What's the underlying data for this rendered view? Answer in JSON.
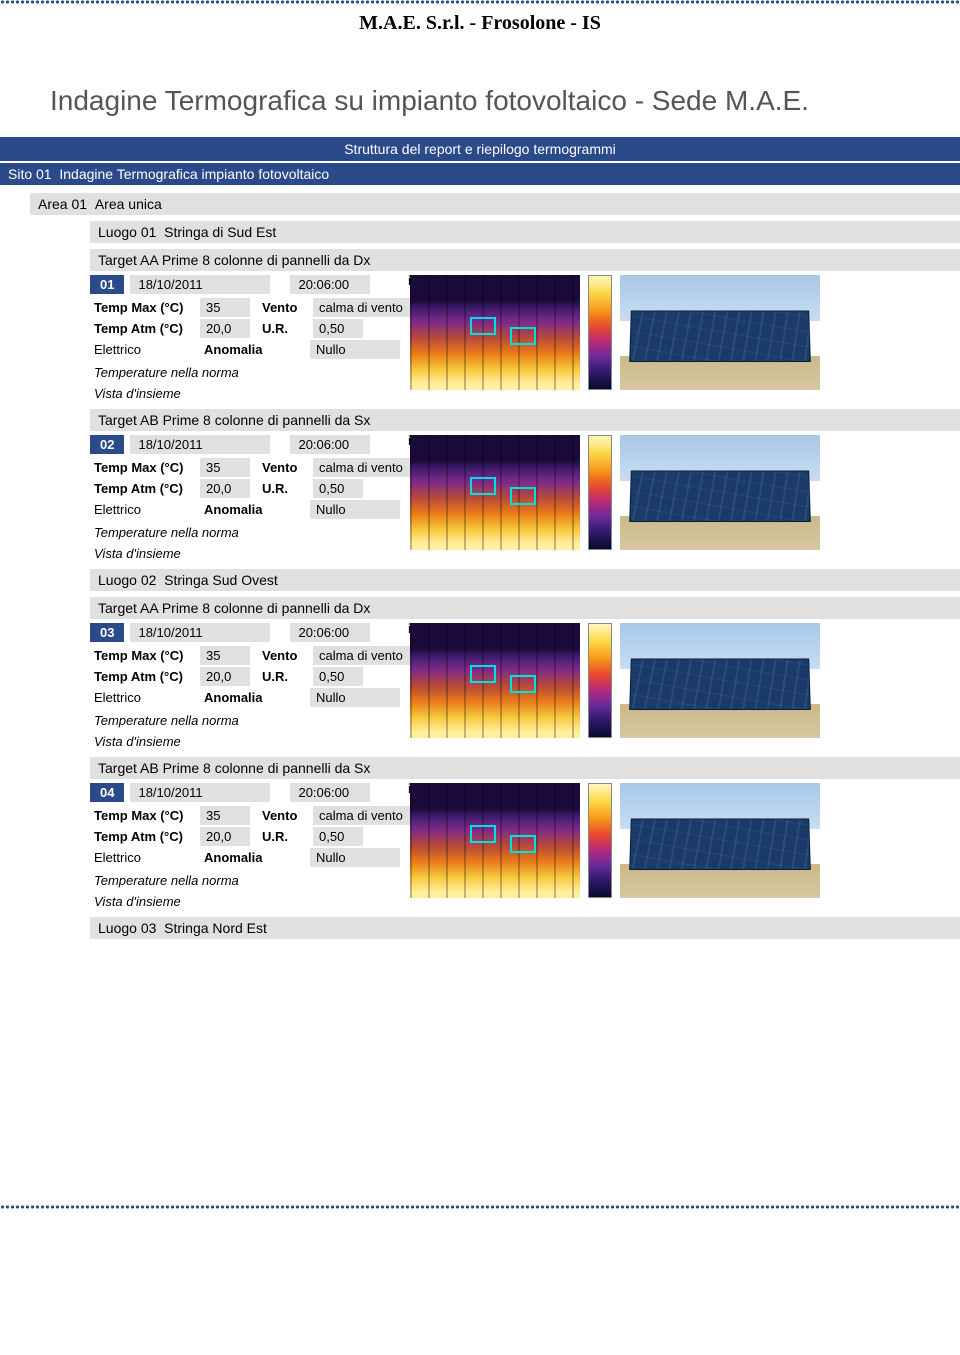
{
  "header": {
    "company": "M.A.E. S.r.l. - Frosolone - IS"
  },
  "title": "Indagine Termografica su impianto fotovoltaico - Sede M.A.E.",
  "section_header": "Struttura del report e riepilogo termogrammi",
  "sito": {
    "label": "Sito 01",
    "name": "Indagine Termografica impianto fotovoltaico"
  },
  "area": {
    "label": "Area 01",
    "name": "Area unica"
  },
  "luoghi": [
    {
      "label": "Luogo  01",
      "name": "Stringa di Sud Est",
      "targets": [
        {
          "title": "Target AA Prime 8 colonne di pannelli da Dx",
          "idx": "01",
          "date": "18/10/2011",
          "time": "20:06:00",
          "file": "ir_5340.jpg",
          "temp_max_label": "Temp Max (°C)",
          "temp_max": "35",
          "vento_label": "Vento",
          "vento": "calma di vento",
          "temp_atm_label": "Temp Atm (°C)",
          "temp_atm": "20,0",
          "ur_label": "U.R.",
          "ur": "0,50",
          "elettrico_label": "Elettrico",
          "anomalia_label": "Anomalia",
          "anomalia": "Nullo",
          "note1": "Temperature nella norma",
          "note2": "Vista d'insieme"
        },
        {
          "title": "Target AB Prime 8 colonne di pannelli da Sx",
          "idx": "02",
          "date": "18/10/2011",
          "time": "20:06:00",
          "file": "ir_5342.jpg",
          "temp_max_label": "Temp Max (°C)",
          "temp_max": "35",
          "vento_label": "Vento",
          "vento": "calma di vento",
          "temp_atm_label": "Temp Atm (°C)",
          "temp_atm": "20,0",
          "ur_label": "U.R.",
          "ur": "0,50",
          "elettrico_label": "Elettrico",
          "anomalia_label": "Anomalia",
          "anomalia": "Nullo",
          "note1": "Temperature nella norma",
          "note2": "Vista d'insieme"
        }
      ]
    },
    {
      "label": "Luogo  02",
      "name": "Stringa Sud Ovest",
      "targets": [
        {
          "title": "Target AA Prime 8 colonne di pannelli da Dx",
          "idx": "03",
          "date": "18/10/2011",
          "time": "20:06:00",
          "file": "ir_5344.jpg",
          "temp_max_label": "Temp Max (°C)",
          "temp_max": "35",
          "vento_label": "Vento",
          "vento": "calma di vento",
          "temp_atm_label": "Temp Atm (°C)",
          "temp_atm": "20,0",
          "ur_label": "U.R.",
          "ur": "0,50",
          "elettrico_label": "Elettrico",
          "anomalia_label": "Anomalia",
          "anomalia": "Nullo",
          "note1": "Temperature nella norma",
          "note2": "Vista d'insieme"
        },
        {
          "title": "Target AB Prime 8 colonne di pannelli da Sx",
          "idx": "04",
          "date": "18/10/2011",
          "time": "20:06:00",
          "file": "ir_5346.jpg",
          "temp_max_label": "Temp Max (°C)",
          "temp_max": "35",
          "vento_label": "Vento",
          "vento": "calma di vento",
          "temp_atm_label": "Temp Atm (°C)",
          "temp_atm": "20,0",
          "ur_label": "U.R.",
          "ur": "0,50",
          "elettrico_label": "Elettrico",
          "anomalia_label": "Anomalia",
          "anomalia": "Nullo",
          "note1": "Temperature nella norma",
          "note2": "Vista d'insieme"
        }
      ]
    },
    {
      "label": "Luogo  03",
      "name": "Stringa Nord Est",
      "targets": []
    }
  ],
  "colors": {
    "brand_blue": "#2a4a8a",
    "panel_gray": "#e0e0e0"
  }
}
